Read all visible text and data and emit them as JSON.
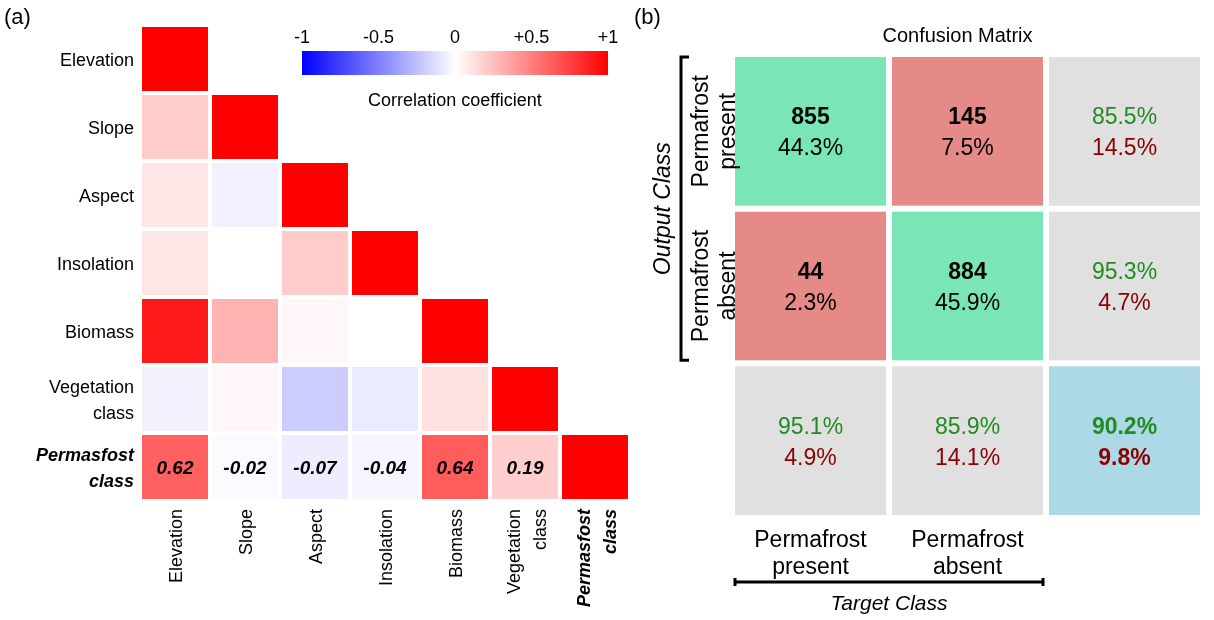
{
  "chart_data": [
    {
      "type": "heatmap",
      "annotations": [
        "(a)"
      ],
      "clabel": "Correlation coefficient",
      "clim": [
        -1,
        1
      ],
      "cticks": [
        -1,
        -0.5,
        0,
        {
          "value": 0.5,
          "label": "+0.5"
        },
        {
          "value": 1,
          "label": "+1"
        }
      ],
      "categories": [
        "Elevation",
        "Slope",
        "Aspect",
        "Insolation",
        "Biomass",
        "Vegetation class",
        "Permasfost class"
      ],
      "y_categories": [
        "Elevation",
        "Slope",
        "Aspect",
        "Insolation",
        "Biomass",
        "Vegetation class",
        "Permasfost class"
      ],
      "cells": [
        [
          1,
          null,
          null,
          null,
          null,
          null,
          null
        ],
        [
          0.2,
          1,
          null,
          null,
          null,
          null,
          null
        ],
        [
          0.1,
          -0.05,
          1,
          null,
          null,
          null,
          null
        ],
        [
          0.1,
          0,
          0.2,
          1,
          null,
          null,
          null
        ],
        [
          0.9,
          0.3,
          0.03,
          0,
          1,
          null,
          null
        ],
        [
          -0.05,
          0.03,
          -0.2,
          -0.08,
          0.12,
          1,
          null
        ],
        [
          0.62,
          -0.02,
          -0.07,
          -0.04,
          0.64,
          0.19,
          1
        ]
      ],
      "cell_labels": [
        [
          null,
          null,
          null,
          null,
          null,
          null,
          null
        ],
        [
          null,
          null,
          null,
          null,
          null,
          null,
          null
        ],
        [
          null,
          null,
          null,
          null,
          null,
          null,
          null
        ],
        [
          null,
          null,
          null,
          null,
          null,
          null,
          null
        ],
        [
          null,
          null,
          null,
          null,
          null,
          null,
          null
        ],
        [
          null,
          null,
          null,
          null,
          null,
          null,
          null
        ],
        [
          "0.62",
          "-0.02",
          "-0.07",
          "-0.04",
          "0.64",
          "0.19",
          null
        ]
      ]
    },
    {
      "type": "heatmap",
      "annotations": [
        "(b)"
      ],
      "title": "Confusion Matrix",
      "xlabel": "Target Class",
      "ylabel": "Output Class",
      "categories": [
        "Permafrost present",
        "Permafrost absent",
        null
      ],
      "y_categories": [
        "Permafrost present",
        "Permafrost absent",
        null
      ],
      "cells": [
        [
          855,
          145,
          85.5
        ],
        [
          44,
          884,
          95.3
        ],
        [
          95.1,
          85.9,
          90.2
        ]
      ],
      "cell_labels": [
        [
          "855",
          "145",
          "85.5%"
        ],
        [
          "44",
          "884",
          "95.3%"
        ],
        [
          "95.1%",
          "85.9%",
          "90.2%"
        ]
      ]
    },
    {
      "type": "heatmap",
      "categories": [
        null,
        null,
        null
      ],
      "y_categories": [
        null,
        null,
        null
      ],
      "cells": [
        [
          44.3,
          7.5,
          14.5
        ],
        [
          2.3,
          45.9,
          4.7
        ],
        [
          4.9,
          14.1,
          9.8
        ]
      ],
      "cell_labels": [
        [
          "44.3%",
          "7.5%",
          "14.5%"
        ],
        [
          "2.3%",
          "45.9%",
          "4.7%"
        ],
        [
          "4.9%",
          "14.1%",
          "9.8%"
        ]
      ]
    }
  ]
}
